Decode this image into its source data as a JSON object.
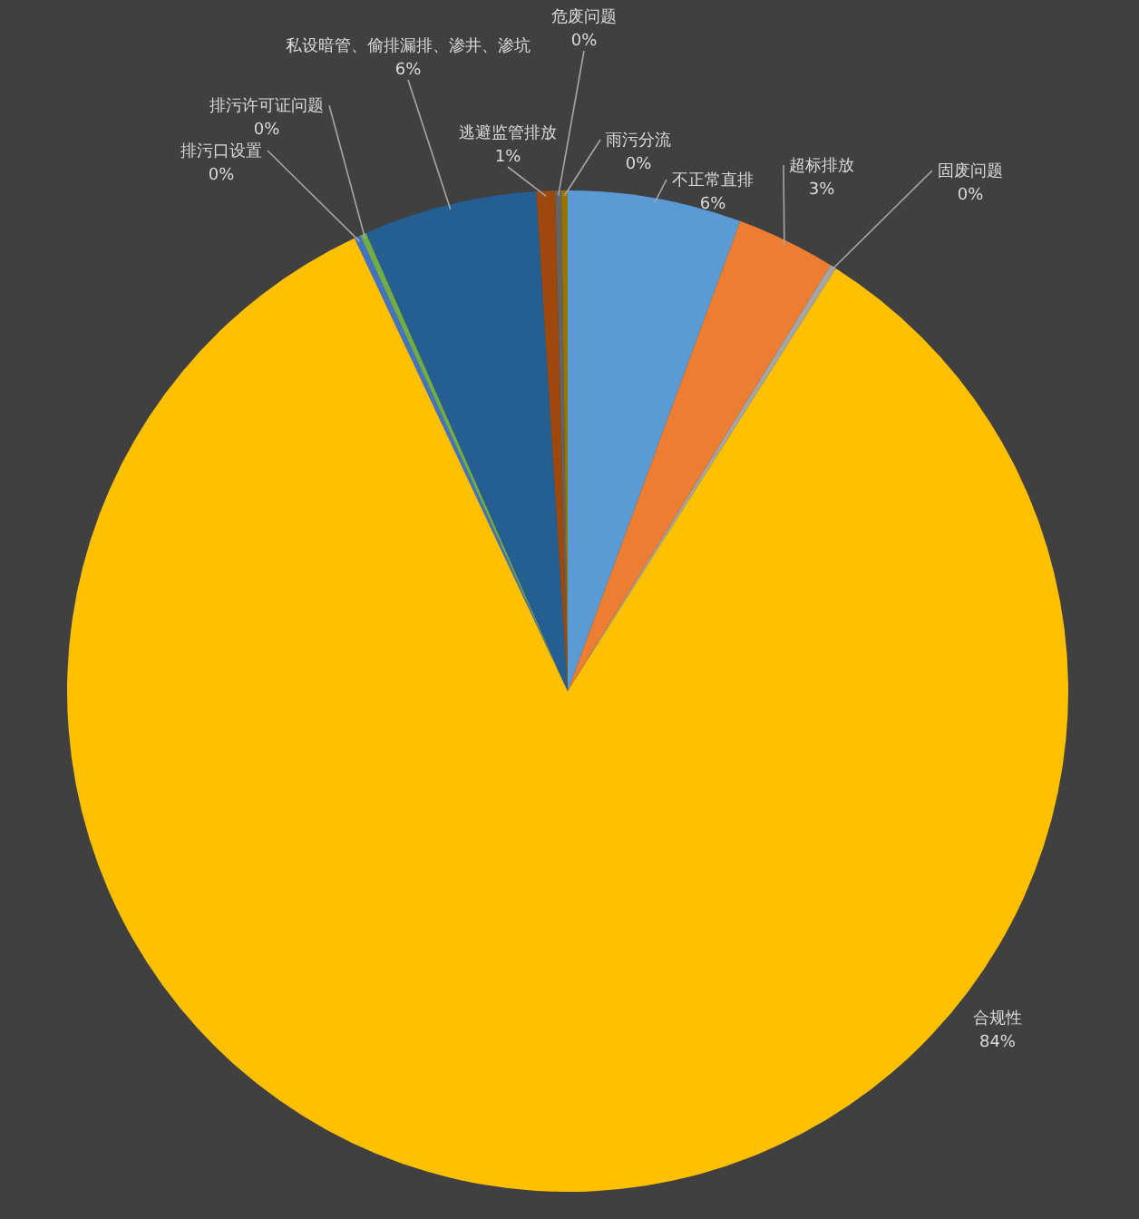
{
  "chart_data": {
    "type": "pie",
    "categories": [
      "不正常直排",
      "超标排放",
      "固废问题",
      "合规性",
      "排污口设置",
      "排污许可证问题",
      "私设暗管、偷排漏排、渗井、渗坑",
      "逃避监管排放",
      "危废问题",
      "雨污分流"
    ],
    "values": [
      5.6,
      3.2,
      0.2,
      84.0,
      0.2,
      0.2,
      5.6,
      0.6,
      0.2,
      0.2
    ],
    "value_labels": [
      "6%",
      "3%",
      "0%",
      "84%",
      "0%",
      "0%",
      "6%",
      "1%",
      "0%",
      "0%"
    ],
    "colors": [
      "#5b9bd5",
      "#ed7d31",
      "#a5a5a5",
      "#ffc000",
      "#4472c4",
      "#70ad47",
      "#255e91",
      "#9e480e",
      "#636363",
      "#997300"
    ]
  }
}
